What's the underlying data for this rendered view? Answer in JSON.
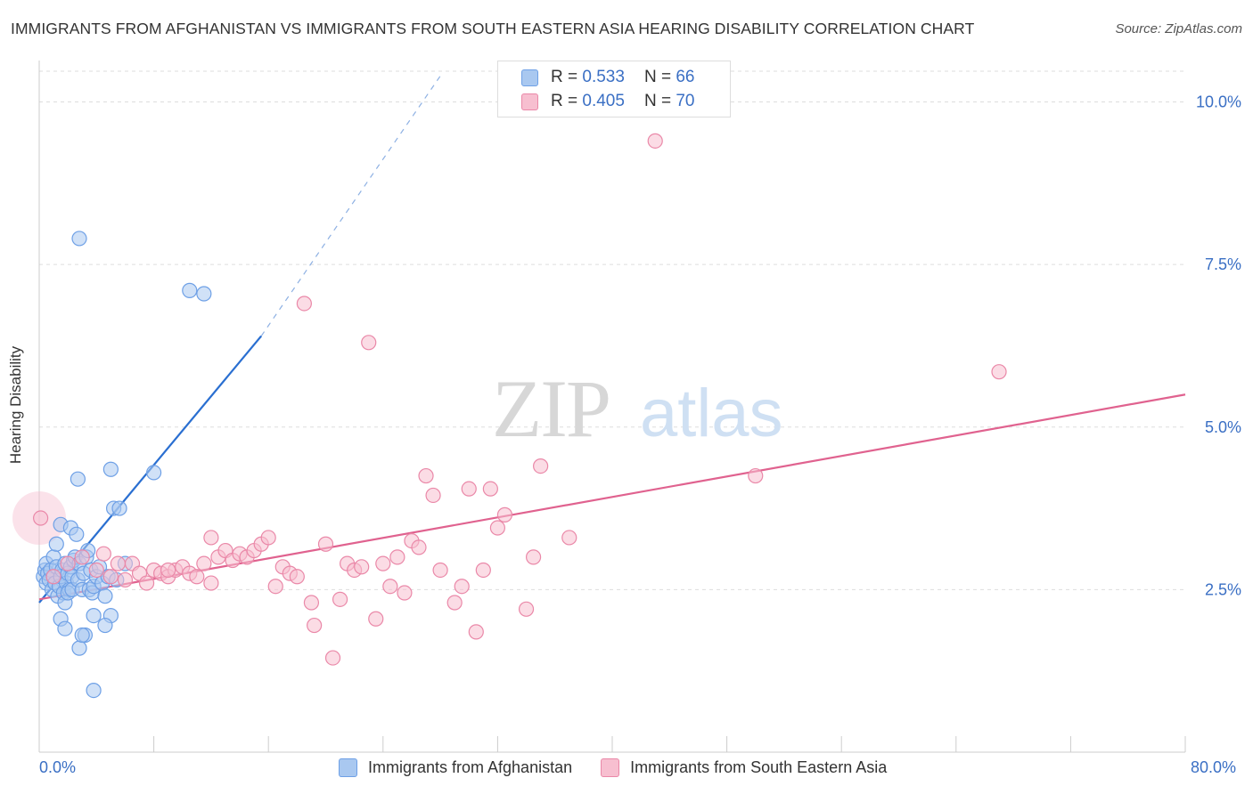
{
  "title": "IMMIGRANTS FROM AFGHANISTAN VS IMMIGRANTS FROM SOUTH EASTERN ASIA HEARING DISABILITY CORRELATION CHART",
  "source": "Source: ZipAtlas.com",
  "watermark": {
    "zip": "ZIP",
    "atlas": "atlas"
  },
  "legend_top": {
    "rows": [
      {
        "r_label": "R =",
        "r_value": "0.533",
        "n_label": "N =",
        "n_value": "66"
      },
      {
        "r_label": "R =",
        "r_value": "0.405",
        "n_label": "N =",
        "n_value": "70"
      }
    ]
  },
  "chart_data": {
    "type": "scatter",
    "title": "IMMIGRANTS FROM AFGHANISTAN VS IMMIGRANTS FROM SOUTH EASTERN ASIA HEARING DISABILITY CORRELATION CHART",
    "xlabel": "",
    "ylabel": "Hearing Disability",
    "xlim": [
      0,
      80
    ],
    "ylim": [
      0,
      10.5
    ],
    "x_tick_labels": [
      "0.0%",
      "80.0%"
    ],
    "y_ticks": [
      2.5,
      5.0,
      7.5,
      10.0
    ],
    "y_tick_labels": [
      "2.5%",
      "5.0%",
      "7.5%",
      "10.0%"
    ],
    "grid": true,
    "legend_position": "top-center",
    "series": [
      {
        "name": "Immigrants from Afghanistan",
        "color": "#6ea0e6",
        "fill": "#a9c8f0",
        "trend": {
          "x": [
            0,
            15.5
          ],
          "y": [
            2.3,
            6.4
          ],
          "dashed_to": {
            "x": 28,
            "y": 10.4
          }
        },
        "points": [
          [
            0.3,
            2.7
          ],
          [
            0.4,
            2.8
          ],
          [
            0.5,
            2.6
          ],
          [
            0.5,
            2.9
          ],
          [
            0.6,
            2.75
          ],
          [
            0.7,
            2.65
          ],
          [
            0.8,
            2.8
          ],
          [
            0.9,
            2.5
          ],
          [
            1.0,
            2.7
          ],
          [
            1.0,
            3.0
          ],
          [
            1.1,
            2.6
          ],
          [
            1.2,
            2.85
          ],
          [
            1.3,
            2.4
          ],
          [
            1.4,
            2.55
          ],
          [
            1.5,
            2.7
          ],
          [
            1.6,
            2.8
          ],
          [
            1.7,
            2.45
          ],
          [
            1.8,
            2.9
          ],
          [
            1.9,
            2.6
          ],
          [
            2.0,
            2.75
          ],
          [
            2.1,
            2.5
          ],
          [
            2.2,
            2.85
          ],
          [
            2.3,
            2.7
          ],
          [
            2.4,
            2.95
          ],
          [
            1.5,
            3.5
          ],
          [
            1.8,
            2.3
          ],
          [
            2.0,
            2.45
          ],
          [
            2.2,
            3.45
          ],
          [
            2.3,
            2.5
          ],
          [
            2.5,
            3.0
          ],
          [
            2.6,
            3.35
          ],
          [
            2.7,
            2.65
          ],
          [
            2.8,
            2.9
          ],
          [
            3.0,
            2.5
          ],
          [
            3.1,
            2.75
          ],
          [
            3.3,
            3.0
          ],
          [
            3.5,
            2.5
          ],
          [
            3.6,
            2.8
          ],
          [
            3.7,
            2.45
          ],
          [
            3.8,
            2.55
          ],
          [
            4.0,
            2.7
          ],
          [
            4.2,
            2.85
          ],
          [
            4.4,
            2.6
          ],
          [
            3.8,
            2.1
          ],
          [
            3.2,
            1.8
          ],
          [
            2.8,
            1.6
          ],
          [
            1.5,
            2.05
          ],
          [
            1.8,
            1.9
          ],
          [
            3.0,
            1.8
          ],
          [
            4.6,
            2.4
          ],
          [
            4.8,
            2.7
          ],
          [
            5.0,
            2.1
          ],
          [
            5.2,
            3.75
          ],
          [
            4.6,
            1.95
          ],
          [
            3.8,
            0.95
          ],
          [
            5.4,
            2.65
          ],
          [
            6.0,
            2.9
          ],
          [
            2.7,
            4.2
          ],
          [
            2.8,
            7.9
          ],
          [
            5.0,
            4.35
          ],
          [
            5.6,
            3.75
          ],
          [
            8.0,
            4.3
          ],
          [
            10.5,
            7.1
          ],
          [
            11.5,
            7.05
          ],
          [
            1.2,
            3.2
          ],
          [
            3.4,
            3.1
          ]
        ]
      },
      {
        "name": "Immigrants from South Eastern Asia",
        "color": "#ea88a8",
        "fill": "#f7bfd0",
        "trend": {
          "x": [
            0,
            80
          ],
          "y": [
            2.35,
            5.5
          ]
        },
        "points": [
          [
            0.1,
            3.6
          ],
          [
            1.0,
            2.7
          ],
          [
            2.0,
            2.9
          ],
          [
            3.0,
            3.0
          ],
          [
            4.0,
            2.8
          ],
          [
            5.0,
            2.7
          ],
          [
            5.5,
            2.9
          ],
          [
            6.0,
            2.65
          ],
          [
            6.5,
            2.9
          ],
          [
            7.0,
            2.75
          ],
          [
            7.5,
            2.6
          ],
          [
            8.0,
            2.8
          ],
          [
            8.5,
            2.75
          ],
          [
            9.0,
            2.7
          ],
          [
            9.5,
            2.8
          ],
          [
            10.0,
            2.85
          ],
          [
            10.5,
            2.75
          ],
          [
            11.0,
            2.7
          ],
          [
            11.5,
            2.9
          ],
          [
            12.0,
            2.6
          ],
          [
            12.5,
            3.0
          ],
          [
            13.0,
            3.1
          ],
          [
            13.5,
            2.95
          ],
          [
            14.0,
            3.05
          ],
          [
            14.5,
            3.0
          ],
          [
            15.0,
            3.1
          ],
          [
            15.5,
            3.2
          ],
          [
            16.0,
            3.3
          ],
          [
            16.5,
            2.55
          ],
          [
            17.0,
            2.85
          ],
          [
            17.5,
            2.75
          ],
          [
            18.0,
            2.7
          ],
          [
            18.5,
            6.9
          ],
          [
            19.0,
            2.3
          ],
          [
            19.2,
            1.95
          ],
          [
            20.0,
            3.2
          ],
          [
            20.5,
            1.45
          ],
          [
            21.0,
            2.35
          ],
          [
            21.5,
            2.9
          ],
          [
            22.0,
            2.8
          ],
          [
            22.5,
            2.85
          ],
          [
            23.0,
            6.3
          ],
          [
            23.5,
            2.05
          ],
          [
            24.0,
            2.9
          ],
          [
            24.5,
            2.55
          ],
          [
            25.0,
            3.0
          ],
          [
            25.5,
            2.45
          ],
          [
            26.0,
            3.25
          ],
          [
            26.5,
            3.15
          ],
          [
            27.0,
            4.25
          ],
          [
            27.5,
            3.95
          ],
          [
            28.0,
            2.8
          ],
          [
            29.0,
            2.3
          ],
          [
            29.5,
            2.55
          ],
          [
            30.0,
            4.05
          ],
          [
            30.5,
            1.85
          ],
          [
            31.0,
            2.8
          ],
          [
            31.5,
            4.05
          ],
          [
            32.0,
            3.45
          ],
          [
            32.5,
            3.65
          ],
          [
            34.0,
            2.2
          ],
          [
            34.5,
            3.0
          ],
          [
            35.0,
            4.4
          ],
          [
            37.0,
            3.3
          ],
          [
            43.0,
            9.4
          ],
          [
            50.0,
            4.25
          ],
          [
            67.0,
            5.85
          ],
          [
            4.5,
            3.05
          ],
          [
            9.0,
            2.8
          ],
          [
            12.0,
            3.3
          ]
        ]
      }
    ]
  },
  "legend_bottom": [
    {
      "label": "Immigrants from Afghanistan",
      "fill": "#a9c8f0",
      "stroke": "#6ea0e6"
    },
    {
      "label": "Immigrants from South Eastern Asia",
      "fill": "#f7bfd0",
      "stroke": "#ea88a8"
    }
  ],
  "colors": {
    "blue_line": "#2a6fd1",
    "pink_line": "#e0628f",
    "tick_text": "#3a6fc4",
    "grid": "#dddddd"
  }
}
